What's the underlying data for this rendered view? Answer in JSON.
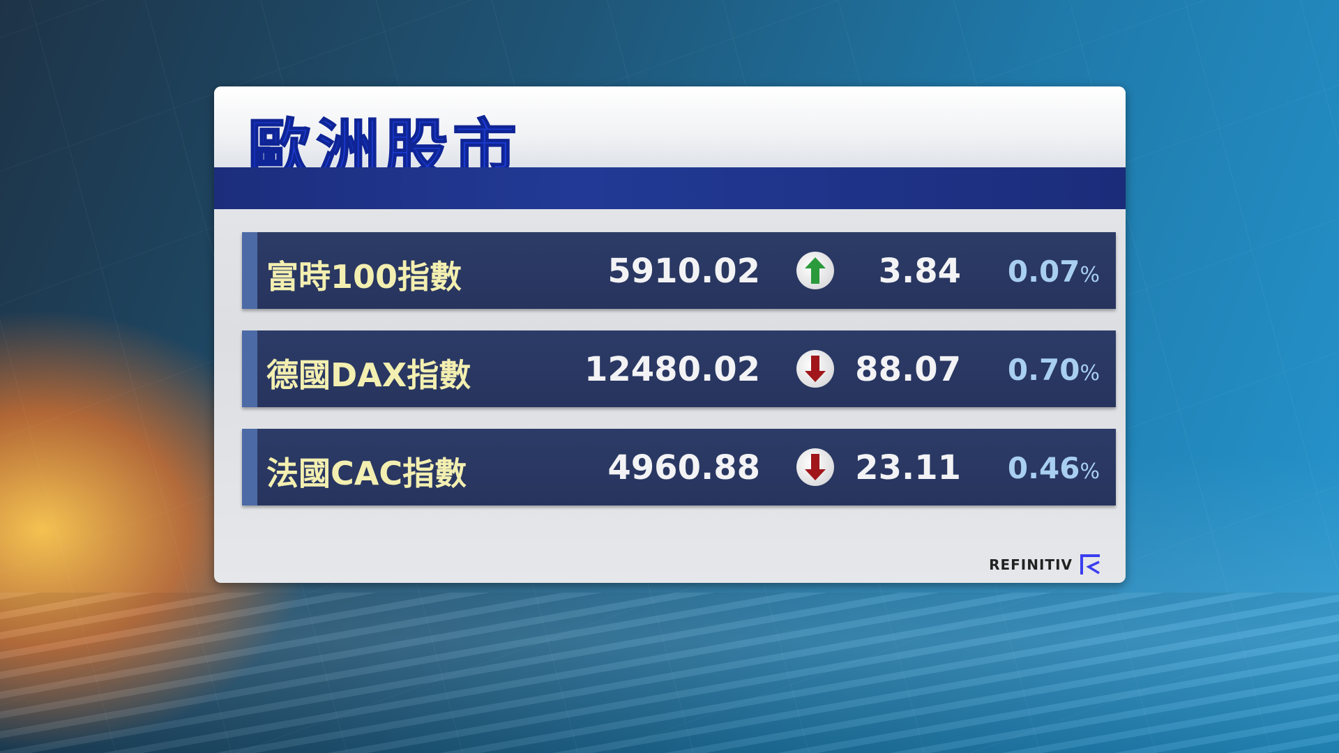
{
  "title": "歐洲股市",
  "rows": [
    {
      "name": "富時100指數",
      "value": "5910.02",
      "direction": "up",
      "change": "3.84",
      "percent": "0.07",
      "percent_sign": "%"
    },
    {
      "name": "德國DAX指數",
      "value": "12480.02",
      "direction": "down",
      "change": "88.07",
      "percent": "0.70",
      "percent_sign": "%"
    },
    {
      "name": "法國CAC指數",
      "value": "4960.88",
      "direction": "down",
      "change": "23.11",
      "percent": "0.46",
      "percent_sign": "%"
    }
  ],
  "source": "REFINITIV",
  "colors": {
    "up": "#2a9a3c",
    "down": "#a0161a",
    "title": "#1c3bd0",
    "name": "#f3efb0",
    "percent": "#a9cff0"
  }
}
